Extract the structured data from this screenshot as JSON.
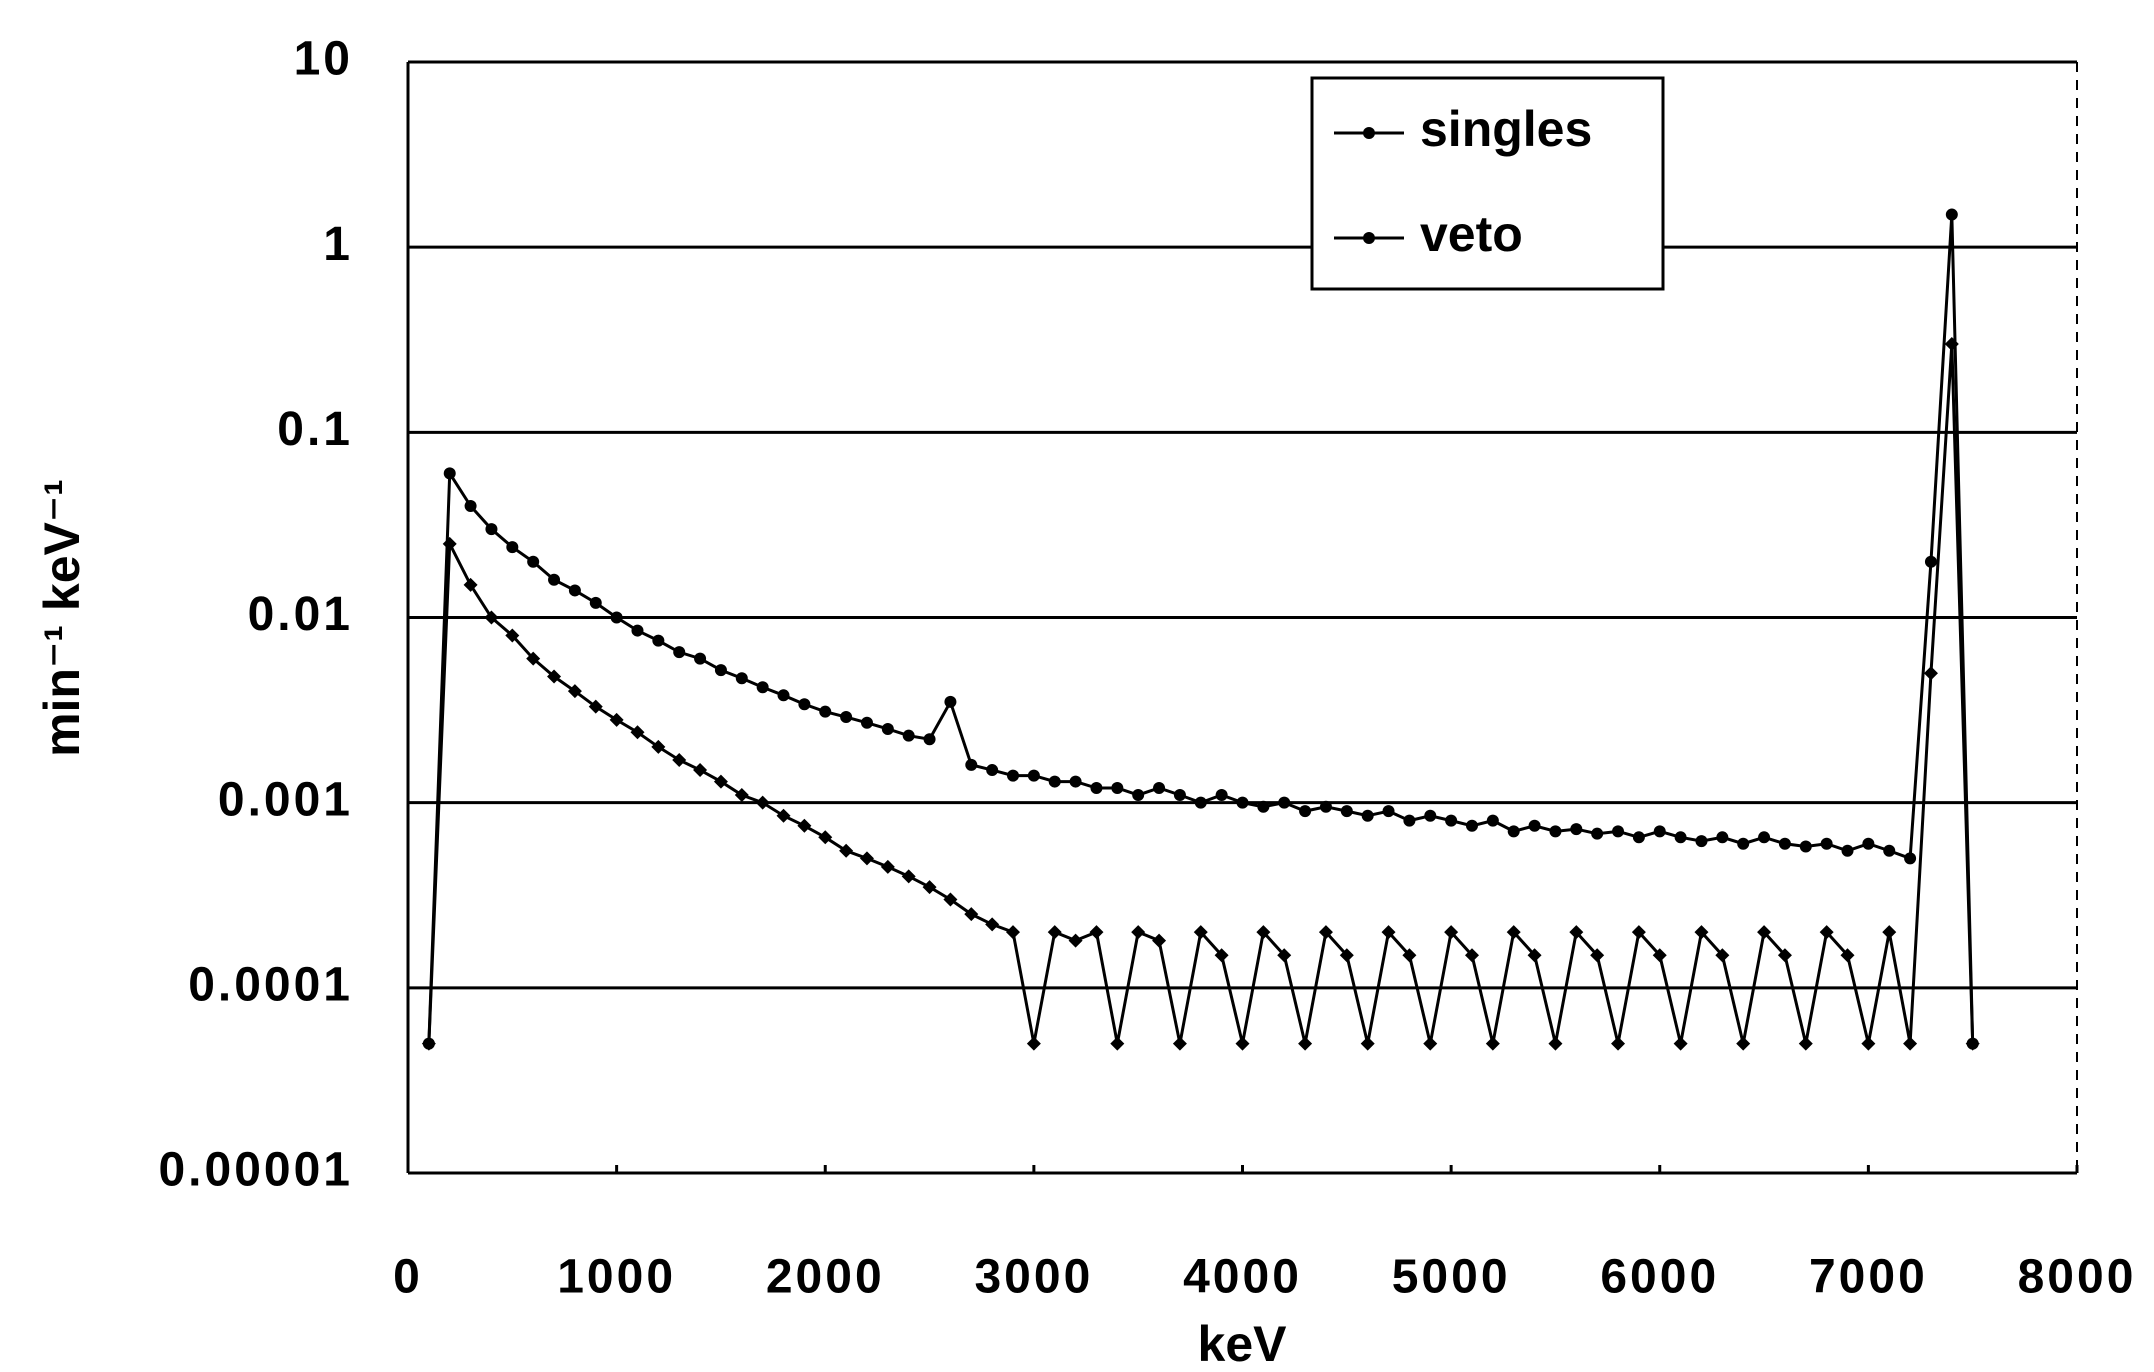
{
  "chart_data": {
    "type": "line",
    "x_label": "keV",
    "y_label": "min⁻¹ keV⁻¹",
    "xlim": [
      0,
      8000
    ],
    "xticks": [
      0,
      1000,
      2000,
      3000,
      4000,
      5000,
      6000,
      7000,
      8000
    ],
    "ylim": [
      1e-05,
      10
    ],
    "yticks": [
      1e-05,
      0.0001,
      0.001,
      0.01,
      0.1,
      1,
      10
    ],
    "log_y": true,
    "grid": true,
    "legend": "top-right",
    "x": [
      100,
      200,
      300,
      400,
      500,
      600,
      700,
      800,
      900,
      1000,
      1100,
      1200,
      1300,
      1400,
      1500,
      1600,
      1700,
      1800,
      1900,
      2000,
      2100,
      2200,
      2300,
      2400,
      2500,
      2600,
      2700,
      2800,
      2900,
      3000,
      3100,
      3200,
      3300,
      3400,
      3500,
      3600,
      3700,
      3800,
      3900,
      4000,
      4100,
      4200,
      4300,
      4400,
      4500,
      4600,
      4700,
      4800,
      4900,
      5000,
      5100,
      5200,
      5300,
      5400,
      5500,
      5600,
      5700,
      5800,
      5900,
      6000,
      6100,
      6200,
      6300,
      6400,
      6500,
      6600,
      6700,
      6800,
      6900,
      7000,
      7100,
      7200,
      7300,
      7400,
      7500
    ],
    "series": [
      {
        "name": "singles",
        "color": "#000000",
        "values": [
          5e-05,
          0.06,
          0.04,
          0.03,
          0.024,
          0.02,
          0.016,
          0.014,
          0.012,
          0.01,
          0.0085,
          0.0075,
          0.0065,
          0.006,
          0.0052,
          0.0047,
          0.0042,
          0.0038,
          0.0034,
          0.0031,
          0.0029,
          0.0027,
          0.0025,
          0.0023,
          0.0022,
          0.0035,
          0.0016,
          0.0015,
          0.0014,
          0.0014,
          0.0013,
          0.0013,
          0.0012,
          0.0012,
          0.0011,
          0.0012,
          0.0011,
          0.001,
          0.0011,
          0.001,
          0.00095,
          0.001,
          0.0009,
          0.00095,
          0.0009,
          0.00085,
          0.0009,
          0.0008,
          0.00085,
          0.0008,
          0.00075,
          0.0008,
          0.0007,
          0.00075,
          0.0007,
          0.00072,
          0.00068,
          0.0007,
          0.00065,
          0.0007,
          0.00065,
          0.00062,
          0.00065,
          0.0006,
          0.00065,
          0.0006,
          0.00058,
          0.0006,
          0.00055,
          0.0006,
          0.00055,
          0.0005,
          0.02,
          1.5,
          5e-05
        ]
      },
      {
        "name": "veto",
        "color": "#000000",
        "values": [
          5e-05,
          0.025,
          0.015,
          0.01,
          0.008,
          0.006,
          0.0048,
          0.004,
          0.0033,
          0.0028,
          0.0024,
          0.002,
          0.0017,
          0.0015,
          0.0013,
          0.0011,
          0.001,
          0.00085,
          0.00075,
          0.00065,
          0.00055,
          0.0005,
          0.00045,
          0.0004,
          0.00035,
          0.0003,
          0.00025,
          0.00022,
          0.0002,
          5e-05,
          0.0002,
          0.00018,
          0.0002,
          5e-05,
          0.0002,
          0.00018,
          5e-05,
          0.0002,
          0.00015,
          5e-05,
          0.0002,
          0.00015,
          5e-05,
          0.0002,
          0.00015,
          5e-05,
          0.0002,
          0.00015,
          5e-05,
          0.0002,
          0.00015,
          5e-05,
          0.0002,
          0.00015,
          5e-05,
          0.0002,
          0.00015,
          5e-05,
          0.0002,
          0.00015,
          5e-05,
          0.0002,
          0.00015,
          5e-05,
          0.0002,
          0.00015,
          5e-05,
          0.0002,
          0.00015,
          5e-05,
          0.0002,
          5e-05,
          0.005,
          0.3,
          5e-05
        ]
      }
    ]
  }
}
